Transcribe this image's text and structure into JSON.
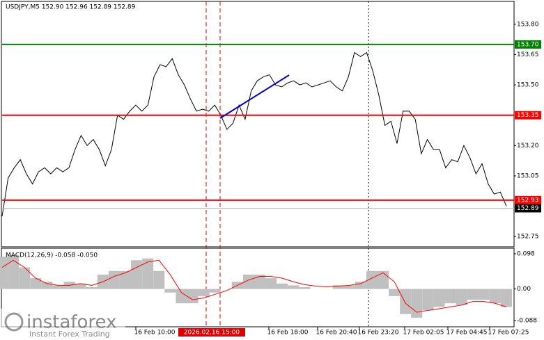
{
  "chart_data": [
    {
      "type": "line",
      "title": "USDJPY,M5  152.90 152.96 152.89 152.89",
      "color": "#000000",
      "values": [
        152.85,
        153.04,
        153.09,
        153.13,
        153.06,
        153.01,
        153.07,
        153.09,
        153.06,
        153.09,
        153.07,
        153.09,
        153.18,
        153.25,
        153.2,
        153.23,
        153.18,
        153.1,
        153.18,
        153.35,
        153.33,
        153.37,
        153.4,
        153.37,
        153.4,
        153.54,
        153.6,
        153.59,
        153.63,
        153.55,
        153.5,
        153.43,
        153.37,
        153.38,
        153.37,
        153.4,
        153.35,
        153.28,
        153.31,
        153.4,
        153.33,
        153.47,
        153.52,
        153.54,
        153.55,
        153.5,
        153.49,
        153.51,
        153.52,
        153.5,
        153.51,
        153.49,
        153.5,
        153.51,
        153.52,
        153.49,
        153.47,
        153.54,
        153.66,
        153.64,
        153.66,
        153.57,
        153.45,
        153.3,
        153.32,
        153.21,
        153.37,
        153.37,
        153.33,
        153.16,
        153.23,
        153.18,
        153.18,
        153.09,
        153.13,
        153.12,
        153.2,
        153.14,
        153.06,
        153.11,
        153.01,
        152.96,
        152.97,
        152.9
      ],
      "ylim": [
        152.699,
        153.913
      ],
      "yticks": [
        {
          "value": 153.8,
          "label": "153.80"
        },
        153.65,
        {
          "value": 153.5,
          "label": "153.50"
        },
        {
          "value": 153.2,
          "label": "153.20"
        },
        153.05,
        152.75
      ],
      "levels": [
        {
          "value": 153.7,
          "label": "153.70",
          "color": "#008000"
        },
        {
          "value": 153.35,
          "label": "153.35",
          "color": "#ff0000"
        },
        {
          "value": 152.93,
          "label": "152.93",
          "color": "#ff0000"
        }
      ],
      "last_price": 152.89,
      "x_labels": [
        "16 Feb 10:00",
        "16 Feb 18:00",
        "16 Feb 20:40",
        "16 Feb 23:20",
        "17 Feb 02:05",
        "17 Feb 04:45",
        "17 Feb 07:25"
      ],
      "cursor_label": "2026.02.16 15:00"
    },
    {
      "type": "macd",
      "title": "MACD(12,26,9) -0.058 -0.050",
      "series": [
        {
          "type": "bar",
          "color": "#c0c0c0",
          "values": [
            0.09,
            0.095,
            0.06,
            0.03,
            0.02,
            0.01,
            0.02,
            0.015,
            0.005,
            0.04,
            0.05,
            0.05,
            0.08,
            0.085,
            0.05,
            -0.01,
            -0.04,
            -0.04,
            -0.02,
            -0.01,
            0.0,
            0.02,
            0.04,
            0.04,
            0.03,
            0.015,
            0.01,
            0.005,
            0.0,
            0.0,
            0.01,
            0.01,
            0.02,
            0.05,
            0.05,
            -0.02,
            -0.07,
            -0.08,
            -0.06,
            -0.05,
            -0.04,
            -0.045,
            -0.03,
            -0.03,
            -0.04,
            -0.05
          ]
        },
        {
          "type": "line",
          "color": "#ff0000",
          "values": [
            0.06,
            0.08,
            0.06,
            0.03,
            0.015,
            0.01,
            0.01,
            0.015,
            0.01,
            0.02,
            0.035,
            0.045,
            0.06,
            0.075,
            0.08,
            0.04,
            -0.01,
            -0.03,
            -0.025,
            -0.015,
            -0.005,
            0.01,
            0.025,
            0.035,
            0.035,
            0.03,
            0.02,
            0.012,
            0.008,
            0.006,
            0.008,
            0.01,
            0.015,
            0.03,
            0.045,
            0.02,
            -0.04,
            -0.065,
            -0.06,
            -0.055,
            -0.05,
            -0.045,
            -0.035,
            -0.035,
            -0.04,
            -0.05
          ]
        }
      ],
      "ylim": [
        -0.1054,
        0.1135
      ],
      "yticks": [
        0.098,
        {
          "value": 0,
          "label": "0.00"
        },
        -0.088
      ]
    }
  ],
  "watermark": {
    "brand": "instaforex",
    "tagline": "Instant Forex Trading"
  }
}
